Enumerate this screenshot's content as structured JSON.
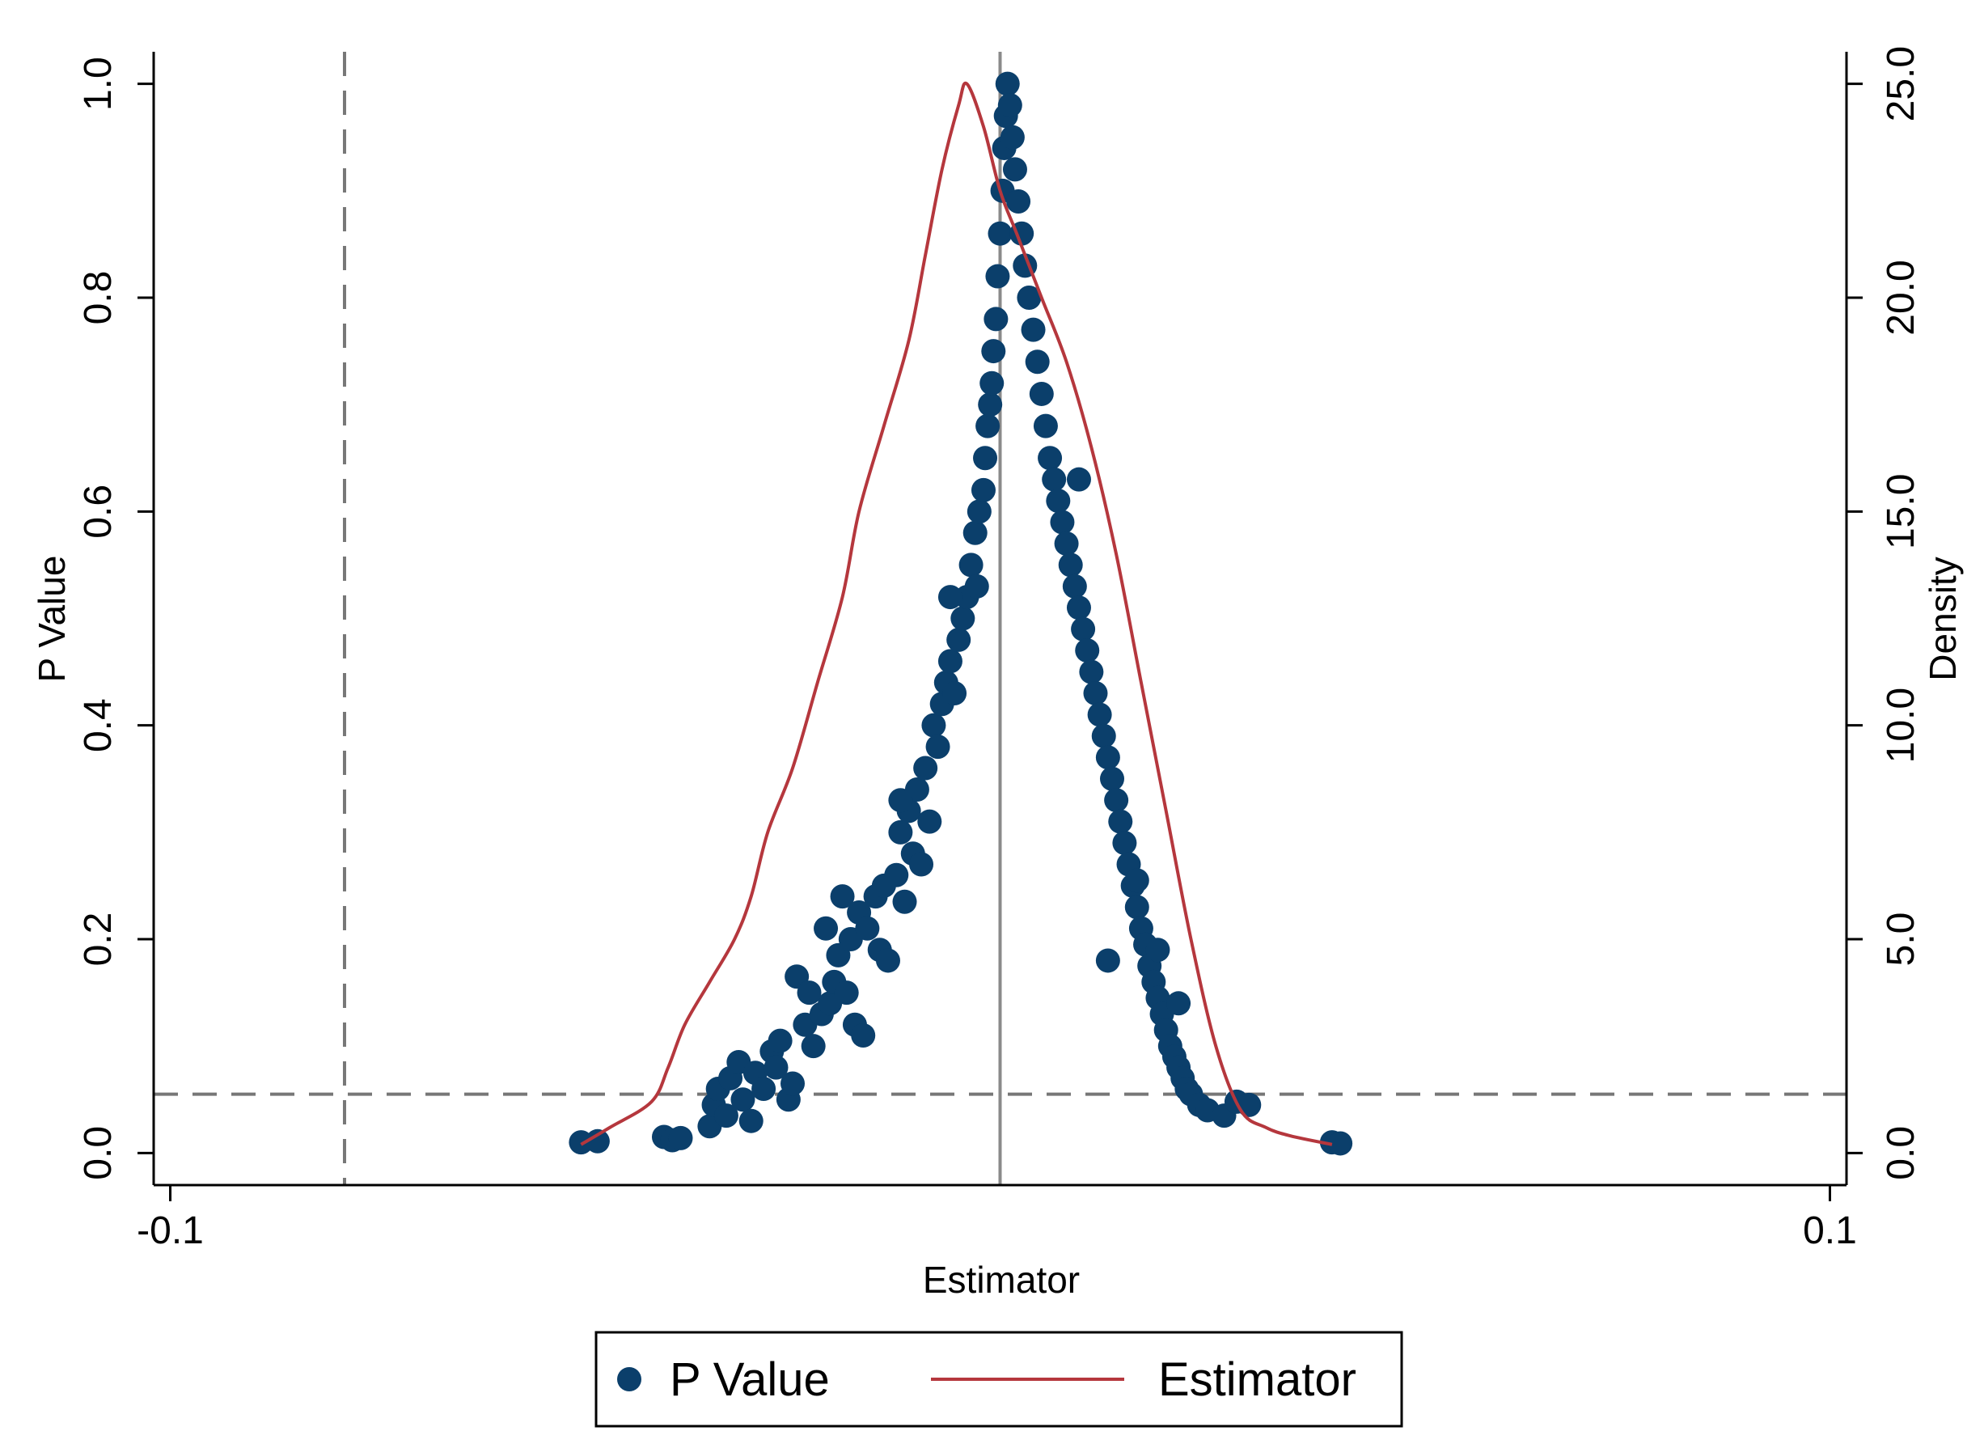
{
  "colors": {
    "background": "#ffffff",
    "axis": "#000000",
    "points": "#0b3f6b",
    "density_line": "#b5373d",
    "reference_line": "#777777",
    "vertical_zero_line": "#8a8a8a"
  },
  "chart_data": {
    "type": "scatter",
    "grid": false,
    "legend_position": "bottom",
    "xlabel": "Estimator",
    "ylabel": "P Value",
    "y2label": "Density",
    "xlim": [
      -0.102,
      0.102
    ],
    "ylim": [
      -0.03,
      1.03
    ],
    "y2lim": [
      -0.75,
      25.75
    ],
    "x_ticks": [
      -0.1,
      0.1
    ],
    "x_tick_labels": [
      "-0.1",
      "0.1"
    ],
    "y_ticks": [
      0,
      0.2,
      0.4,
      0.6,
      0.8,
      1.0
    ],
    "y_tick_labels": [
      "0.0",
      "0.2",
      "0.4",
      "0.6",
      "0.8",
      "1.0"
    ],
    "y2_ticks": [
      0,
      5,
      10,
      15,
      20,
      25
    ],
    "y2_tick_labels": [
      "0.0",
      "5.0",
      "10.0",
      "15.0",
      "20.0",
      "25.0"
    ],
    "reference_lines": {
      "vertical_dashed_x": -0.079,
      "vertical_solid_x": 0.0,
      "horizontal_dashed_y": 0.055
    },
    "series": [
      {
        "name": "P Value",
        "kind": "scatter",
        "points": [
          [
            -0.0505,
            0.01
          ],
          [
            -0.0485,
            0.011
          ],
          [
            -0.0405,
            0.015
          ],
          [
            -0.0395,
            0.012
          ],
          [
            -0.0385,
            0.014
          ],
          [
            -0.035,
            0.025
          ],
          [
            -0.0345,
            0.045
          ],
          [
            -0.034,
            0.06
          ],
          [
            -0.033,
            0.035
          ],
          [
            -0.0325,
            0.07
          ],
          [
            -0.0315,
            0.085
          ],
          [
            -0.031,
            0.05
          ],
          [
            -0.03,
            0.03
          ],
          [
            -0.0295,
            0.075
          ],
          [
            -0.0285,
            0.06
          ],
          [
            -0.0275,
            0.095
          ],
          [
            -0.0265,
            0.105
          ],
          [
            -0.0255,
            0.05
          ],
          [
            -0.025,
            0.065
          ],
          [
            -0.027,
            0.08
          ],
          [
            -0.0245,
            0.165
          ],
          [
            -0.0235,
            0.12
          ],
          [
            -0.0225,
            0.1
          ],
          [
            -0.0215,
            0.13
          ],
          [
            -0.0205,
            0.14
          ],
          [
            -0.02,
            0.16
          ],
          [
            -0.0195,
            0.185
          ],
          [
            -0.0185,
            0.15
          ],
          [
            -0.018,
            0.2
          ],
          [
            -0.0175,
            0.12
          ],
          [
            -0.017,
            0.225
          ],
          [
            -0.0165,
            0.11
          ],
          [
            -0.016,
            0.21
          ],
          [
            -0.015,
            0.24
          ],
          [
            -0.0145,
            0.19
          ],
          [
            -0.014,
            0.25
          ],
          [
            -0.0135,
            0.18
          ],
          [
            -0.0125,
            0.26
          ],
          [
            -0.012,
            0.3
          ],
          [
            -0.0115,
            0.235
          ],
          [
            -0.011,
            0.32
          ],
          [
            -0.0105,
            0.28
          ],
          [
            -0.01,
            0.34
          ],
          [
            -0.0095,
            0.27
          ],
          [
            -0.009,
            0.36
          ],
          [
            -0.0085,
            0.31
          ],
          [
            -0.008,
            0.4
          ],
          [
            -0.0075,
            0.38
          ],
          [
            -0.007,
            0.42
          ],
          [
            -0.0065,
            0.44
          ],
          [
            -0.006,
            0.46
          ],
          [
            -0.0055,
            0.43
          ],
          [
            -0.005,
            0.48
          ],
          [
            -0.0045,
            0.5
          ],
          [
            -0.004,
            0.52
          ],
          [
            -0.0035,
            0.55
          ],
          [
            -0.003,
            0.58
          ],
          [
            -0.0028,
            0.53
          ],
          [
            -0.0025,
            0.6
          ],
          [
            -0.002,
            0.62
          ],
          [
            -0.0018,
            0.65
          ],
          [
            -0.0015,
            0.68
          ],
          [
            -0.0012,
            0.7
          ],
          [
            -0.001,
            0.72
          ],
          [
            -0.0008,
            0.75
          ],
          [
            -0.0005,
            0.78
          ],
          [
            -0.0003,
            0.82
          ],
          [
            0.0,
            0.86
          ],
          [
            0.0003,
            0.9
          ],
          [
            0.0005,
            0.94
          ],
          [
            0.0007,
            0.97
          ],
          [
            0.0009,
            1.0
          ],
          [
            0.0012,
            0.98
          ],
          [
            0.0015,
            0.95
          ],
          [
            0.0018,
            0.92
          ],
          [
            0.0022,
            0.89
          ],
          [
            0.0026,
            0.86
          ],
          [
            0.003,
            0.83
          ],
          [
            0.0035,
            0.8
          ],
          [
            0.004,
            0.77
          ],
          [
            0.0045,
            0.74
          ],
          [
            0.005,
            0.71
          ],
          [
            0.0055,
            0.68
          ],
          [
            0.006,
            0.65
          ],
          [
            0.0065,
            0.63
          ],
          [
            0.007,
            0.61
          ],
          [
            0.0075,
            0.59
          ],
          [
            0.008,
            0.57
          ],
          [
            0.0085,
            0.55
          ],
          [
            0.009,
            0.53
          ],
          [
            0.0095,
            0.51
          ],
          [
            0.01,
            0.49
          ],
          [
            0.0105,
            0.47
          ],
          [
            0.011,
            0.45
          ],
          [
            0.0115,
            0.43
          ],
          [
            0.012,
            0.41
          ],
          [
            0.0125,
            0.39
          ],
          [
            0.013,
            0.37
          ],
          [
            0.0135,
            0.35
          ],
          [
            0.014,
            0.33
          ],
          [
            0.0145,
            0.31
          ],
          [
            0.015,
            0.29
          ],
          [
            0.0155,
            0.27
          ],
          [
            0.016,
            0.25
          ],
          [
            0.0165,
            0.23
          ],
          [
            0.017,
            0.21
          ],
          [
            0.0175,
            0.195
          ],
          [
            0.018,
            0.175
          ],
          [
            0.0185,
            0.16
          ],
          [
            0.019,
            0.145
          ],
          [
            0.0195,
            0.13
          ],
          [
            0.02,
            0.115
          ],
          [
            0.0205,
            0.1
          ],
          [
            0.021,
            0.09
          ],
          [
            0.0215,
            0.08
          ],
          [
            0.022,
            0.07
          ],
          [
            0.0225,
            0.06
          ],
          [
            0.023,
            0.055
          ],
          [
            0.024,
            0.045
          ],
          [
            0.025,
            0.04
          ],
          [
            0.0165,
            0.255
          ],
          [
            0.0215,
            0.14
          ],
          [
            0.013,
            0.18
          ],
          [
            0.019,
            0.19
          ],
          [
            0.0095,
            0.63
          ],
          [
            0.027,
            0.035
          ],
          [
            0.0285,
            0.048
          ],
          [
            0.03,
            0.045
          ],
          [
            0.04,
            0.01
          ],
          [
            0.041,
            0.009
          ],
          [
            -0.021,
            0.21
          ],
          [
            -0.023,
            0.15
          ],
          [
            -0.019,
            0.24
          ],
          [
            -0.012,
            0.33
          ],
          [
            -0.006,
            0.52
          ]
        ]
      },
      {
        "name": "Estimator",
        "kind": "line",
        "y_axis": "right",
        "points": [
          [
            -0.0505,
            0.2
          ],
          [
            -0.047,
            0.6
          ],
          [
            -0.042,
            1.2
          ],
          [
            -0.04,
            2.0
          ],
          [
            -0.038,
            3.0
          ],
          [
            -0.035,
            4.0
          ],
          [
            -0.032,
            5.0
          ],
          [
            -0.03,
            6.0
          ],
          [
            -0.028,
            7.5
          ],
          [
            -0.025,
            9.0
          ],
          [
            -0.022,
            11.0
          ],
          [
            -0.019,
            13.0
          ],
          [
            -0.017,
            15.0
          ],
          [
            -0.014,
            17.0
          ],
          [
            -0.011,
            19.0
          ],
          [
            -0.009,
            21.0
          ],
          [
            -0.007,
            23.0
          ],
          [
            -0.005,
            24.5
          ],
          [
            -0.004,
            25.0
          ],
          [
            -0.002,
            24.0
          ],
          [
            0.0,
            22.5
          ],
          [
            0.002,
            21.5
          ],
          [
            0.005,
            20.0
          ],
          [
            0.008,
            18.5
          ],
          [
            0.011,
            16.5
          ],
          [
            0.014,
            14.0
          ],
          [
            0.017,
            11.0
          ],
          [
            0.02,
            8.0
          ],
          [
            0.023,
            5.0
          ],
          [
            0.026,
            2.5
          ],
          [
            0.029,
            1.0
          ],
          [
            0.032,
            0.6
          ],
          [
            0.035,
            0.4
          ],
          [
            0.04,
            0.2
          ]
        ]
      }
    ]
  },
  "legend": {
    "items": [
      {
        "label": "P Value"
      },
      {
        "label": "Estimator"
      }
    ]
  }
}
